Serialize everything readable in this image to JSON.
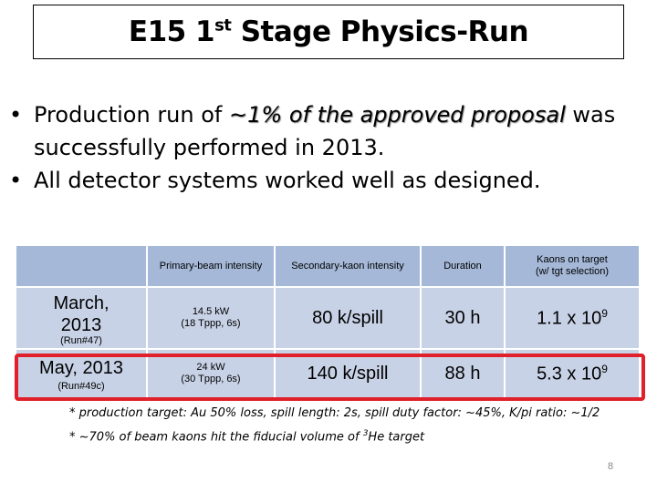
{
  "title": {
    "main": "E15 1",
    "sup": "st",
    "rest": " Stage Physics-Run"
  },
  "bullets": [
    {
      "marker": "•",
      "text_before": "Production run of ",
      "emphasis": "~1% of the approved proposal",
      "text_after": " was successfully performed in 2013."
    },
    {
      "marker": "•",
      "text": "All detector systems worked well as designed."
    }
  ],
  "table": {
    "headers": {
      "primary": "Primary-beam intensity",
      "secondary": "Secondary-kaon intensity",
      "duration": "Duration",
      "kaons_line1": "Kaons on target",
      "kaons_line2": "(w/ tgt selection)"
    },
    "rows": [
      {
        "label": "March, 2013",
        "run": "(Run#47)",
        "primary_line1": "14.5 kW",
        "primary_line2": "(18 Tppp, 6s)",
        "secondary": "80 k/spill",
        "duration": "30 h",
        "kaons": "1.1 x 10",
        "kaons_exp": "9"
      },
      {
        "label": "May, 2013",
        "run": "(Run#49c)",
        "primary_line1": "24 kW",
        "primary_line2": "(30 Tppp, 6s)",
        "secondary": "140 k/spill",
        "duration": "88 h",
        "kaons": "5.3 x 10",
        "kaons_exp": "9"
      }
    ]
  },
  "notes": {
    "note1": "* production target: Au 50% loss, spill length: 2s, spill duty factor: ~45%, K/pi ratio: ~1/2",
    "note2_before": "* ~70% of beam kaons hit the fiducial volume of ",
    "note2_sup": "3",
    "note2_after": "He target"
  },
  "page_number": "8",
  "colors": {
    "table_header": "#a5b8d8",
    "table_body": "#c8d2e6",
    "highlight_box": "#e0202a"
  }
}
